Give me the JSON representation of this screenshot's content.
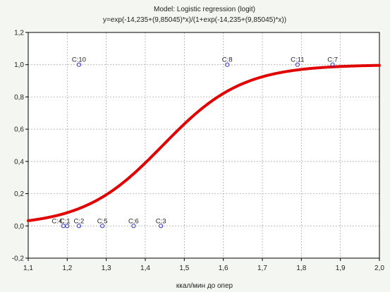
{
  "chart_data": {
    "type": "scatter",
    "title": "Model: Logistic regression (logit)",
    "subtitle": "y=exp(-14,235+(9,85045)*x)/(1+exp(-14,235+(9,85045)*x))",
    "xlabel": "ккал/мин до опер",
    "ylabel": "",
    "xlim": [
      1.1,
      2.0
    ],
    "ylim": [
      -0.2,
      1.2
    ],
    "x_ticks": [
      "1,1",
      "1,2",
      "1,3",
      "1,4",
      "1,5",
      "1,6",
      "1,7",
      "1,8",
      "1,9",
      "2,0"
    ],
    "y_ticks": [
      "-0,2",
      "0,0",
      "0,2",
      "0,4",
      "0,6",
      "0,8",
      "1,0",
      "1,2"
    ],
    "grid": true,
    "model": {
      "intercept": -14.235,
      "slope": 9.85045,
      "color": "#e00000"
    },
    "point_color": "#3333cc",
    "points": [
      {
        "label": "C:4",
        "x": 1.19,
        "y": 0.0
      },
      {
        "label": "C:1",
        "x": 1.2,
        "y": 0.0
      },
      {
        "label": "C:2",
        "x": 1.23,
        "y": 0.0
      },
      {
        "label": "C:5",
        "x": 1.29,
        "y": 0.0
      },
      {
        "label": "C:6",
        "x": 1.37,
        "y": 0.0
      },
      {
        "label": "C:3",
        "x": 1.44,
        "y": 0.0
      },
      {
        "label": "C:10",
        "x": 1.23,
        "y": 1.0
      },
      {
        "label": "C:8",
        "x": 1.61,
        "y": 1.0
      },
      {
        "label": "C:11",
        "x": 1.79,
        "y": 1.0
      },
      {
        "label": "C:7",
        "x": 1.88,
        "y": 1.0
      }
    ]
  }
}
